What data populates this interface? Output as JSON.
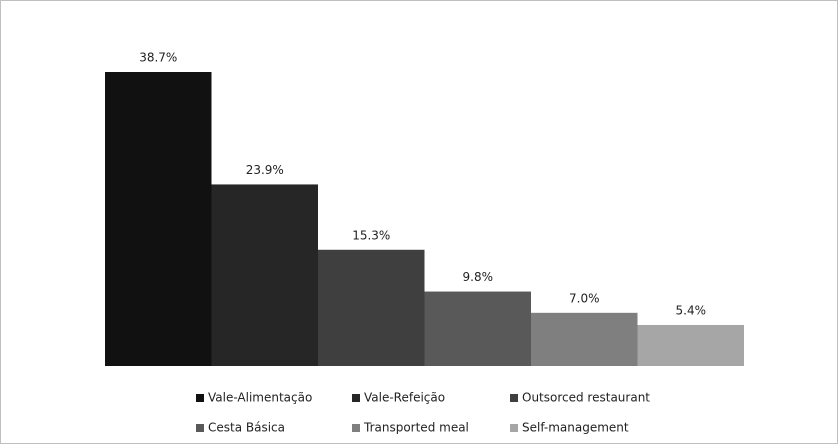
{
  "chart_data": {
    "type": "bar",
    "series": [
      {
        "name": "Vale-Alimentação",
        "color": "#111111",
        "values": [
          38.7
        ],
        "value_labels": [
          "38.7%"
        ]
      },
      {
        "name": "Vale-Refeição",
        "color": "#262626",
        "values": [
          23.9
        ],
        "value_labels": [
          "23.9%"
        ]
      },
      {
        "name": "Outsorced restaurant",
        "color": "#3f3f3f",
        "values": [
          15.3
        ],
        "value_labels": [
          "15.3%"
        ]
      },
      {
        "name": "Cesta Básica",
        "color": "#595959",
        "values": [
          9.8
        ],
        "value_labels": [
          "9.8%"
        ]
      },
      {
        "name": "Transported meal",
        "color": "#7f7f7f",
        "values": [
          7.0
        ],
        "value_labels": [
          "7.0%"
        ]
      },
      {
        "name": "Self-management",
        "color": "#a6a6a6",
        "values": [
          5.4
        ],
        "value_labels": [
          "5.4%"
        ]
      }
    ]
  }
}
